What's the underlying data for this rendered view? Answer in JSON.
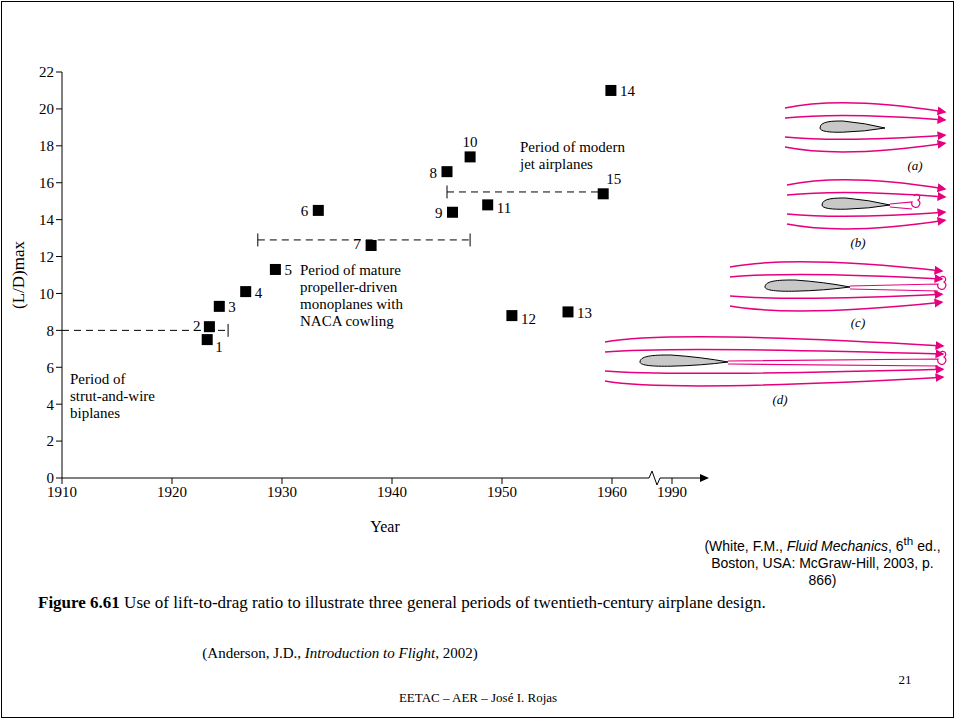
{
  "chart_data": {
    "type": "scatter",
    "xlabel": "Year",
    "ylabel": "(L/D)max",
    "x": [
      1923.2,
      1923.4,
      1924.3,
      1926.7,
      1929.4,
      1933.3,
      1938.1,
      1945.0,
      1945.5,
      1947.1,
      1948.7,
      1950.9,
      1956.0,
      1959.9,
      1959.2
    ],
    "values": [
      7.5,
      8.2,
      9.3,
      10.1,
      11.3,
      14.5,
      12.6,
      16.6,
      14.4,
      17.4,
      14.8,
      8.8,
      9.0,
      21.0,
      15.4
    ],
    "point_labels": [
      "1",
      "2",
      "3",
      "4",
      "5",
      "6",
      "7",
      "8",
      "9",
      "10",
      "11",
      "12",
      "13",
      "14",
      "15"
    ],
    "xlim": [
      1910,
      1963
    ],
    "xticks": [
      1910,
      1920,
      1930,
      1940,
      1950,
      1960
    ],
    "x_break_label": "1990",
    "ylim": [
      0,
      22
    ],
    "yticks": [
      0,
      2,
      4,
      6,
      8,
      10,
      12,
      14,
      16,
      18,
      20,
      22
    ],
    "color": "#000000",
    "marker": "square",
    "grid": false,
    "annotations": [
      {
        "text_lines": [
          "Period of",
          "strut-and-wire",
          "biplanes"
        ],
        "x": [
          1910,
          1925.1
        ],
        "y": 8.0
      },
      {
        "text_lines": [
          "Period of mature",
          "propeller-driven",
          "monoplanes with",
          "NACA cowling"
        ],
        "x": [
          1927.8,
          1947.1
        ],
        "y": 12.9
      },
      {
        "text_lines": [
          "Period of modern",
          "jet airplanes"
        ],
        "x": [
          1945.0,
          1959.2
        ],
        "y": 15.5
      }
    ]
  },
  "airflow_diagram": {
    "labels": [
      "(a)",
      "(b)",
      "(c)",
      "(d)"
    ],
    "color": "#e6007e",
    "citation": [
      {
        "text": "(White, F.M., "
      },
      {
        "text": "Fluid Mechanics",
        "italic": true
      },
      {
        "text": ", 6"
      },
      {
        "text": "th",
        "sup": true
      },
      {
        "text": " ed., Boston, USA: McGraw-Hill, 2003, p. 866)"
      }
    ]
  },
  "caption": {
    "label": "Figure 6.61",
    "text": "Use of lift-to-drag ratio to illustrate three general periods of twentieth-century airplane design."
  },
  "source": [
    {
      "text": "(Anderson, J.D., "
    },
    {
      "text": "Introduction to Flight",
      "italic": true
    },
    {
      "text": ", 2002)"
    }
  ],
  "footer": "EETAC – AER – José I. Rojas",
  "page_number": "21"
}
